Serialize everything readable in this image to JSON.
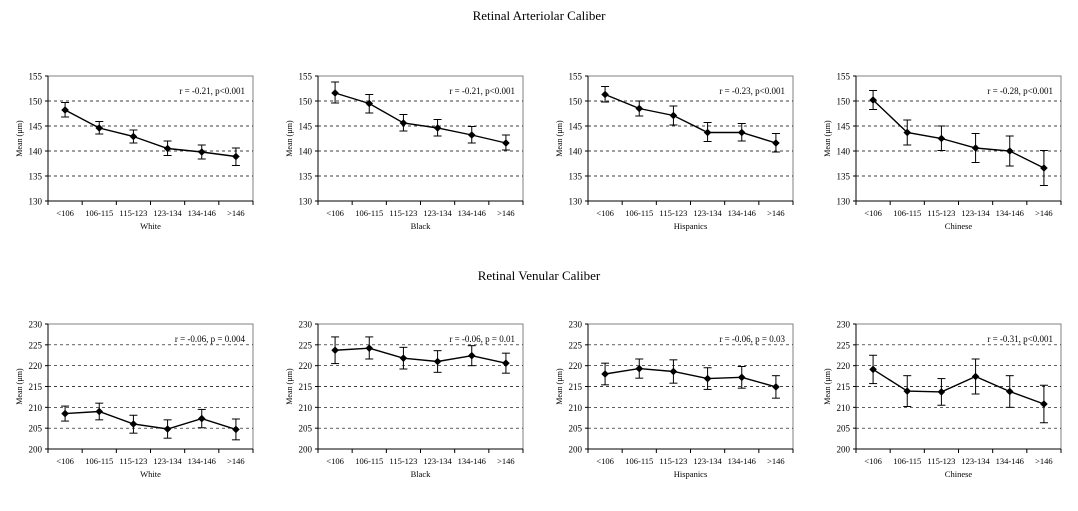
{
  "sections": [
    {
      "title": "Retinal Arteriolar Caliber"
    },
    {
      "title": "Retinal Venular Caliber"
    }
  ],
  "chart_data": [
    {
      "type": "line",
      "section": 0,
      "title": "",
      "xlabel": "White",
      "ylabel": "Mean (µm)",
      "annotation": "r = -0.21, p<0.001",
      "categories": [
        "<106",
        "106-115",
        "115-123",
        "123-134",
        "134-146",
        ">146"
      ],
      "ylim": [
        130,
        155
      ],
      "yticks": [
        130,
        135,
        140,
        145,
        150,
        155
      ],
      "grid": "dashed",
      "values": [
        148.2,
        144.6,
        142.9,
        140.5,
        139.8,
        138.9
      ],
      "err_low": [
        146.8,
        143.4,
        141.6,
        139.1,
        138.4,
        137.1
      ],
      "err_high": [
        149.7,
        145.9,
        144.2,
        142.0,
        141.2,
        140.6
      ]
    },
    {
      "type": "line",
      "section": 0,
      "title": "",
      "xlabel": "Black",
      "ylabel": "Mean (µm)",
      "annotation": "r = -0.21, p<0.001",
      "categories": [
        "<106",
        "106-115",
        "115-123",
        "123-134",
        "134-146",
        ">146"
      ],
      "ylim": [
        130,
        155
      ],
      "yticks": [
        130,
        135,
        140,
        145,
        150,
        155
      ],
      "grid": "dashed",
      "values": [
        151.6,
        149.5,
        145.6,
        144.6,
        143.2,
        141.6
      ],
      "err_low": [
        149.6,
        147.6,
        144.0,
        143.0,
        141.6,
        140.2
      ],
      "err_high": [
        153.8,
        151.3,
        147.3,
        146.3,
        144.9,
        143.2
      ]
    },
    {
      "type": "line",
      "section": 0,
      "title": "",
      "xlabel": "Hispanics",
      "ylabel": "Mean (µm)",
      "annotation": "r = -0.23, p<0.001",
      "categories": [
        "<106",
        "106-115",
        "115-123",
        "123-134",
        "134-146",
        ">146"
      ],
      "ylim": [
        130,
        155
      ],
      "yticks": [
        130,
        135,
        140,
        145,
        150,
        155
      ],
      "grid": "dashed",
      "values": [
        151.3,
        148.5,
        147.1,
        143.7,
        143.7,
        141.6
      ],
      "err_low": [
        149.8,
        147.0,
        145.2,
        141.9,
        142.0,
        139.8
      ],
      "err_high": [
        152.9,
        150.0,
        149.0,
        145.7,
        145.5,
        143.5
      ]
    },
    {
      "type": "line",
      "section": 0,
      "title": "",
      "xlabel": "Chinese",
      "ylabel": "Mean (µm)",
      "annotation": "r = -0.28, p<0.001",
      "categories": [
        "<106",
        "106-115",
        "115-123",
        "123-134",
        "134-146",
        ">146"
      ],
      "ylim": [
        130,
        155
      ],
      "yticks": [
        130,
        135,
        140,
        145,
        150,
        155
      ],
      "grid": "dashed",
      "values": [
        150.2,
        143.7,
        142.5,
        140.6,
        140.0,
        136.6
      ],
      "err_low": [
        148.3,
        141.2,
        140.1,
        137.7,
        137.0,
        133.1
      ],
      "err_high": [
        152.1,
        146.2,
        145.0,
        143.5,
        143.0,
        140.1
      ]
    },
    {
      "type": "line",
      "section": 1,
      "title": "",
      "xlabel": "White",
      "ylabel": "Mean (µm)",
      "annotation": "r = -0.06, p = 0.004",
      "categories": [
        "<106",
        "106-115",
        "115-123",
        "123-134",
        "134-146",
        ">146"
      ],
      "ylim": [
        200,
        230
      ],
      "yticks": [
        200,
        205,
        210,
        215,
        220,
        225,
        230
      ],
      "grid": "dashed",
      "values": [
        208.5,
        209.0,
        206.0,
        204.8,
        207.3,
        204.7
      ],
      "err_low": [
        206.7,
        207.0,
        203.8,
        202.6,
        205.1,
        202.2
      ],
      "err_high": [
        210.3,
        211.0,
        208.1,
        207.0,
        209.5,
        207.2
      ]
    },
    {
      "type": "line",
      "section": 1,
      "title": "",
      "xlabel": "Black",
      "ylabel": "Mean (µm)",
      "annotation": "r = -0.06, p = 0.01",
      "categories": [
        "<106",
        "106-115",
        "115-123",
        "123-134",
        "134-146",
        ">146"
      ],
      "ylim": [
        200,
        230
      ],
      "yticks": [
        200,
        205,
        210,
        215,
        220,
        225,
        230
      ],
      "grid": "dashed",
      "values": [
        223.7,
        224.2,
        221.8,
        221.0,
        222.4,
        220.6
      ],
      "err_low": [
        220.5,
        221.6,
        219.2,
        218.4,
        220.0,
        218.2
      ],
      "err_high": [
        226.9,
        226.9,
        224.4,
        223.6,
        224.8,
        223.0
      ]
    },
    {
      "type": "line",
      "section": 1,
      "title": "",
      "xlabel": "Hispanics",
      "ylabel": "Mean (µm)",
      "annotation": "r = -0.06, p = 0.03",
      "categories": [
        "<106",
        "106-115",
        "115-123",
        "123-134",
        "134-146",
        ">146"
      ],
      "ylim": [
        200,
        230
      ],
      "yticks": [
        200,
        205,
        210,
        215,
        220,
        225,
        230
      ],
      "grid": "dashed",
      "values": [
        218.0,
        219.3,
        218.6,
        216.9,
        217.2,
        214.9
      ],
      "err_low": [
        215.4,
        217.0,
        215.8,
        214.3,
        214.6,
        212.2
      ],
      "err_high": [
        220.6,
        221.6,
        221.4,
        219.5,
        219.8,
        217.6
      ]
    },
    {
      "type": "line",
      "section": 1,
      "title": "",
      "xlabel": "Chinese",
      "ylabel": "Mean (µm)",
      "annotation": "r = -0.31, p<0.001",
      "categories": [
        "<106",
        "106-115",
        "115-123",
        "123-134",
        "134-146",
        ">146"
      ],
      "ylim": [
        200,
        230
      ],
      "yticks": [
        200,
        205,
        210,
        215,
        220,
        225,
        230
      ],
      "grid": "dashed",
      "values": [
        219.1,
        213.9,
        213.7,
        217.4,
        213.8,
        210.8
      ],
      "err_low": [
        215.7,
        210.2,
        210.5,
        213.2,
        210.0,
        206.3
      ],
      "err_high": [
        222.5,
        217.6,
        216.9,
        221.6,
        217.6,
        215.3
      ]
    }
  ]
}
